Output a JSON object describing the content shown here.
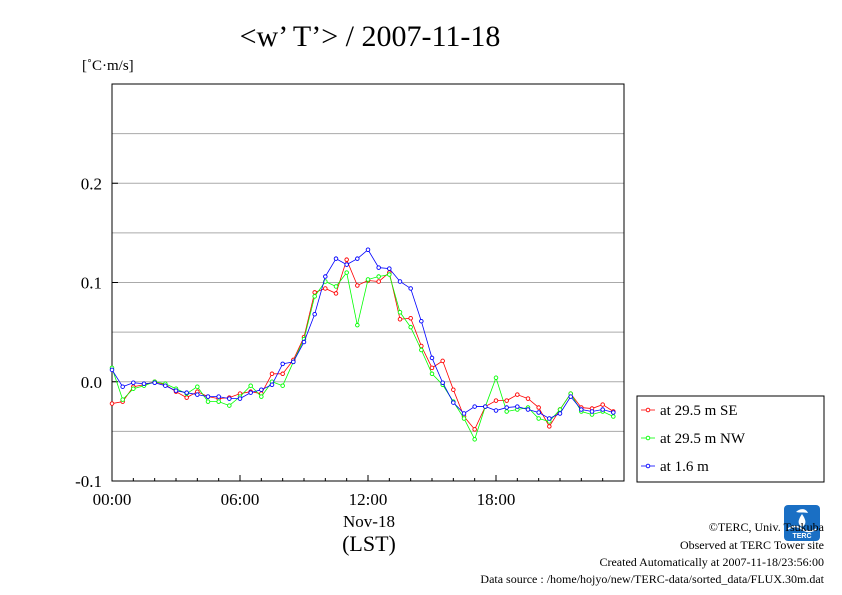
{
  "title": "<w’ T’> / 2007-11-18",
  "chart_data": {
    "type": "line",
    "title": "<w’ T’> / 2007-11-18",
    "ylabel": "[˚C·m/s]",
    "xlabel": "(LST)",
    "x_date_label": "Nov-18",
    "xlim": [
      0,
      24
    ],
    "ylim": [
      -0.1,
      0.3
    ],
    "y_ticks": [
      {
        "value": 0.2,
        "label": "0.2"
      },
      {
        "value": 0.1,
        "label": "0.1"
      },
      {
        "value": 0.0,
        "label": "0.0"
      },
      {
        "value": -0.1,
        "label": "-0.1"
      }
    ],
    "y_gridlines": [
      -0.05,
      0.05,
      0.15,
      0.25
    ],
    "x_ticks": [
      {
        "value": 0,
        "label": "00:00"
      },
      {
        "value": 6,
        "label": "06:00"
      },
      {
        "value": 12,
        "label": "12:00"
      },
      {
        "value": 18,
        "label": "18:00"
      }
    ],
    "grid": true,
    "legend_position": "right",
    "x": [
      0.0,
      0.5,
      1.0,
      1.5,
      2.0,
      2.5,
      3.0,
      3.5,
      4.0,
      4.5,
      5.0,
      5.5,
      6.0,
      6.5,
      7.0,
      7.5,
      8.0,
      8.5,
      9.0,
      9.5,
      10.0,
      10.5,
      11.0,
      11.5,
      12.0,
      12.5,
      13.0,
      13.5,
      14.0,
      14.5,
      15.0,
      15.5,
      16.0,
      16.5,
      17.0,
      17.5,
      18.0,
      18.5,
      19.0,
      19.5,
      20.0,
      20.5,
      21.0,
      21.5,
      22.0,
      22.5,
      23.0,
      23.5
    ],
    "series": [
      {
        "name": "at 29.5 m SE",
        "color": "#ff0000",
        "values": [
          -0.022,
          -0.02,
          -0.005,
          -0.003,
          0.0,
          -0.003,
          -0.01,
          -0.016,
          -0.01,
          -0.015,
          -0.017,
          -0.016,
          -0.012,
          -0.01,
          -0.012,
          0.008,
          0.008,
          0.022,
          0.045,
          0.09,
          0.094,
          0.089,
          0.123,
          0.097,
          0.102,
          0.101,
          0.11,
          0.063,
          0.064,
          0.036,
          0.014,
          0.021,
          -0.008,
          -0.035,
          -0.048,
          -0.025,
          -0.019,
          -0.019,
          -0.013,
          -0.017,
          -0.026,
          -0.045,
          -0.028,
          -0.012,
          -0.026,
          -0.027,
          -0.023,
          -0.03
        ]
      },
      {
        "name": "at 29.5 m NW",
        "color": "#00ff00",
        "values": [
          0.014,
          -0.018,
          -0.007,
          -0.004,
          0.0,
          -0.002,
          -0.007,
          -0.012,
          -0.005,
          -0.02,
          -0.02,
          -0.024,
          -0.015,
          -0.004,
          -0.015,
          0.0,
          -0.004,
          0.02,
          0.043,
          0.086,
          0.101,
          0.096,
          0.11,
          0.057,
          0.103,
          0.106,
          0.108,
          0.07,
          0.055,
          0.032,
          0.008,
          -0.003,
          -0.02,
          -0.037,
          -0.058,
          -0.025,
          0.004,
          -0.03,
          -0.028,
          -0.026,
          -0.037,
          -0.04,
          -0.028,
          -0.012,
          -0.03,
          -0.033,
          -0.03,
          -0.035
        ]
      },
      {
        "name": "at 1.6 m",
        "color": "#0000ff",
        "values": [
          0.012,
          -0.005,
          -0.001,
          -0.002,
          -0.001,
          -0.004,
          -0.009,
          -0.011,
          -0.013,
          -0.015,
          -0.015,
          -0.017,
          -0.017,
          -0.011,
          -0.008,
          -0.003,
          0.018,
          0.02,
          0.04,
          0.068,
          0.106,
          0.124,
          0.118,
          0.124,
          0.133,
          0.115,
          0.114,
          0.101,
          0.094,
          0.061,
          0.024,
          -0.001,
          -0.021,
          -0.032,
          -0.025,
          -0.025,
          -0.029,
          -0.026,
          -0.025,
          -0.028,
          -0.031,
          -0.037,
          -0.032,
          -0.015,
          -0.028,
          -0.03,
          -0.028,
          -0.031
        ]
      }
    ]
  },
  "credits": {
    "copyright": "©TERC, Univ. Tsukuba",
    "observed": "Observed at TERC Tower site",
    "created": "Created Automatically at 2007-11-18/23:56:00",
    "source": "Data source : /home/hojyo/new/TERC-data/sorted_data/FLUX.30m.dat"
  },
  "logo": {
    "text": "TERC",
    "color": "#1a6fc4"
  }
}
